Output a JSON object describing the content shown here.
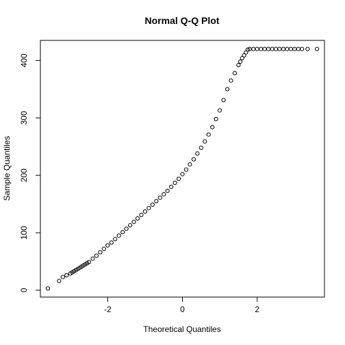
{
  "chart_data": {
    "type": "scatter",
    "title": "Normal Q-Q Plot",
    "xlabel": "Theoretical Quantiles",
    "ylabel": "Sample Quantiles",
    "xlim": [
      -3.8,
      3.8
    ],
    "ylim": [
      -12,
      435
    ],
    "x_ticks": [
      -2,
      0,
      2
    ],
    "x_tick_labels": [
      "-2",
      "0",
      "2"
    ],
    "y_ticks": [
      0,
      100,
      200,
      300,
      400
    ],
    "y_tick_labels": [
      "0",
      "100",
      "200",
      "300",
      "400"
    ],
    "grid": false,
    "legend": "none",
    "point_color": "#000000",
    "series": [
      {
        "x": [
          -3.6,
          -3.3,
          -3.2,
          -3.1,
          -3.0,
          -2.95,
          -2.9,
          -2.85,
          -2.8,
          -2.75,
          -2.7,
          -2.65,
          -2.6,
          -2.55,
          -2.5,
          -2.4,
          -2.3,
          -2.2,
          -2.1,
          -2.0,
          -1.9,
          -1.8,
          -1.7,
          -1.6,
          -1.5,
          -1.4,
          -1.3,
          -1.2,
          -1.1,
          -1.0,
          -0.9,
          -0.8,
          -0.7,
          -0.6,
          -0.5,
          -0.4,
          -0.3,
          -0.2,
          -0.1,
          0.0,
          0.1,
          0.2,
          0.3,
          0.4,
          0.5,
          0.6,
          0.7,
          0.8,
          0.9,
          1.0,
          1.1,
          1.2,
          1.3,
          1.4,
          1.5,
          1.55,
          1.6,
          1.65,
          1.7,
          1.75,
          1.8,
          1.9,
          2.0,
          2.1,
          2.2,
          2.3,
          2.4,
          2.5,
          2.6,
          2.7,
          2.8,
          2.9,
          3.0,
          3.1,
          3.2,
          3.35,
          3.6
        ],
        "y": [
          3,
          16,
          23,
          26,
          29,
          31,
          33,
          35,
          37,
          39,
          41,
          43,
          45,
          47,
          49,
          55,
          60,
          66,
          72,
          78,
          83,
          89,
          95,
          101,
          107,
          113,
          119,
          125,
          131,
          137,
          143,
          149,
          155,
          161,
          167,
          173,
          180,
          187,
          194,
          202,
          210,
          219,
          228,
          238,
          248,
          259,
          271,
          284,
          298,
          313,
          331,
          350,
          365,
          378,
          392,
          398,
          404,
          409,
          414,
          419,
          420,
          420,
          420,
          420,
          420,
          420,
          420,
          420,
          420,
          420,
          420,
          420,
          420,
          420,
          420,
          420,
          420
        ]
      }
    ]
  }
}
